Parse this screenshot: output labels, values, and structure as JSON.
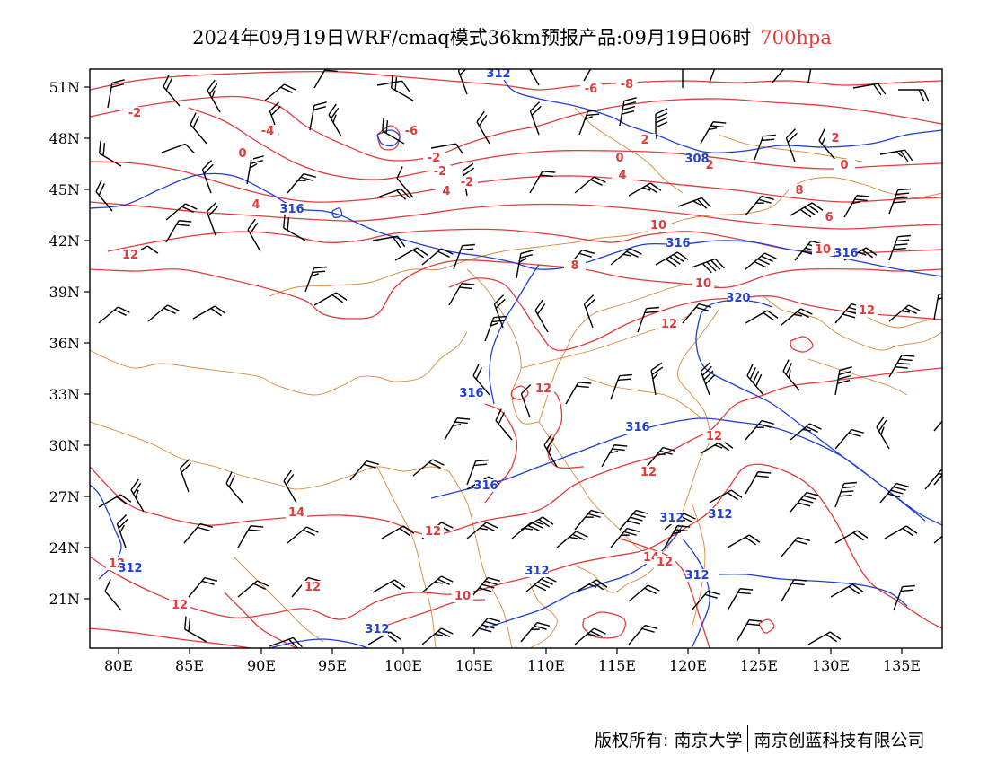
{
  "header": {
    "title": "2024年09月19日WRF/cmaq模式36km预报产品:09月19日06时",
    "level": "700hpa"
  },
  "axes": {
    "lat_labels": [
      "51N",
      "48N",
      "45N",
      "42N",
      "39N",
      "36N",
      "33N",
      "30N",
      "27N",
      "24N",
      "21N"
    ],
    "lon_labels": [
      "80E",
      "85E",
      "90E",
      "95E",
      "100E",
      "105E",
      "110E",
      "115E",
      "120E",
      "125E",
      "130E",
      "135E"
    ]
  },
  "colors": {
    "temperature": "#e23b3b",
    "geopotential": "#1f3fd6",
    "boundary": "#d9883a",
    "wind": "#000000"
  },
  "temp_labels": [
    "-6",
    "-8",
    "-6",
    "-4",
    "-2",
    "-2",
    "0",
    "-2",
    "0",
    "-2",
    "2",
    "0",
    "2",
    "4",
    "2",
    "4",
    "4",
    "8",
    "6",
    "10",
    "8",
    "10",
    "10",
    "12",
    "12",
    "12",
    "12",
    "14",
    "12",
    "12",
    "12",
    "14",
    "12",
    "12",
    "12",
    "10",
    "12"
  ],
  "hgt_labels": [
    "312",
    "308",
    "316",
    "316",
    "316",
    "320",
    "316",
    "316",
    "316",
    "312",
    "312",
    "312",
    "312",
    "312",
    "312"
  ],
  "footer": {
    "copyright": "版权所有: 南京大学",
    "company": "南京创蓝科技有限公司"
  }
}
